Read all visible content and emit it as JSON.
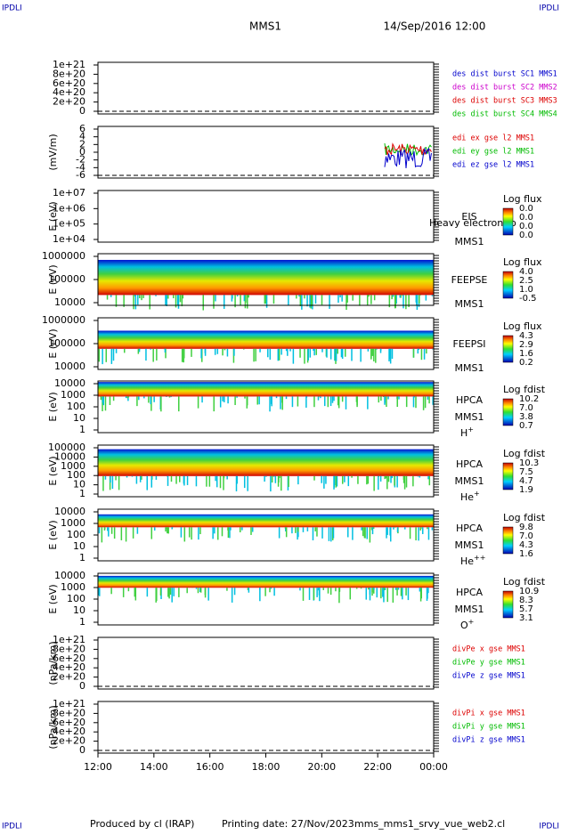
{
  "header": {
    "left_mark": "IPDLI",
    "right_mark": "IPDLI",
    "mission": "MMS1",
    "date": "14/Sep/2016 12:00"
  },
  "panels": [
    {
      "yticks": [
        "1e+21",
        "8e+20",
        "6e+20",
        "4e+20",
        "2e+20",
        "0"
      ],
      "legend": [
        {
          "text": "des dist burst SC1 MMS1",
          "color": "#0000cc"
        },
        {
          "text": "des dist burst SC2 MMS2",
          "color": "#cc00cc"
        },
        {
          "text": "des dist burst SC3 MMS3",
          "color": "#dd0000"
        },
        {
          "text": "des dist burst SC4 MMS4",
          "color": "#00bb00"
        }
      ]
    },
    {
      "ylabel": "(mV/m)",
      "yticks": [
        "6",
        "4",
        "2",
        "0",
        "-2",
        "-4",
        "-6"
      ],
      "legend": [
        {
          "text": "edi ex gse l2 MMS1",
          "color": "#dd0000"
        },
        {
          "text": "edi ey gse l2 MMS1",
          "color": "#00bb00"
        },
        {
          "text": "edi ez gse l2 MMS1",
          "color": "#0000cc"
        }
      ]
    },
    {
      "ylabel": "E (eV)",
      "yticks": [
        "1e+07",
        "1e+06",
        "1e+05",
        "1e+04"
      ],
      "instrument": [
        "EIS",
        "Heavy electron to",
        "MMS1"
      ],
      "colorbar": {
        "title": "Log flux",
        "ticks": [
          "0.0",
          "0.0",
          "0.0",
          "0.0"
        ]
      }
    },
    {
      "ylabel": "E (eV)",
      "yticks": [
        "1000000",
        "100000",
        "10000"
      ],
      "instrument": [
        "FEEPSE",
        "MMS1"
      ],
      "colorbar": {
        "title": "Log flux",
        "ticks": [
          "4.0",
          "2.5",
          "1.0",
          "-0.5"
        ]
      }
    },
    {
      "ylabel": "E (eV)",
      "yticks": [
        "1000000",
        "100000",
        "10000"
      ],
      "instrument": [
        "FEEPSI",
        "MMS1"
      ],
      "colorbar": {
        "title": "Log flux",
        "ticks": [
          "4.3",
          "2.9",
          "1.6",
          "0.2"
        ]
      }
    },
    {
      "ylabel": "E (eV)",
      "yticks": [
        "10000",
        "1000",
        "100",
        "10",
        "1"
      ],
      "instrument": [
        "HPCA",
        "MMS1"
      ],
      "species": {
        "base": "H",
        "charge": "+"
      },
      "colorbar": {
        "title": "Log fdist",
        "ticks": [
          "10.2",
          "7.0",
          "3.8",
          "0.7"
        ]
      }
    },
    {
      "ylabel": "E (eV)",
      "yticks": [
        "100000",
        "10000",
        "1000",
        "100",
        "10",
        "1"
      ],
      "instrument": [
        "HPCA",
        "MMS1"
      ],
      "species": {
        "base": "He",
        "charge": "+"
      },
      "colorbar": {
        "title": "Log fdist",
        "ticks": [
          "10.3",
          "7.5",
          "4.7",
          "1.9"
        ]
      }
    },
    {
      "ylabel": "E (eV)",
      "yticks": [
        "10000",
        "1000",
        "100",
        "10",
        "1"
      ],
      "instrument": [
        "HPCA",
        "MMS1"
      ],
      "species": {
        "base": "He",
        "charge": "++"
      },
      "colorbar": {
        "title": "Log fdist",
        "ticks": [
          "9.8",
          "7.0",
          "4.3",
          "1.6"
        ]
      }
    },
    {
      "ylabel": "E (eV)",
      "yticks": [
        "10000",
        "1000",
        "100",
        "10",
        "1"
      ],
      "instrument": [
        "HPCA",
        "MMS1"
      ],
      "species": {
        "base": "O",
        "charge": "+"
      },
      "colorbar": {
        "title": "Log fdist",
        "ticks": [
          "10.9",
          "8.3",
          "5.7",
          "3.1"
        ]
      }
    },
    {
      "ylabel": "(nPa/km)",
      "yticks": [
        "1e+21",
        "8e+20",
        "6e+20",
        "4e+20",
        "2e+20",
        "0"
      ],
      "legend": [
        {
          "text": "divPe x gse MMS1",
          "color": "#dd0000"
        },
        {
          "text": "divPe y gse MMS1",
          "color": "#00bb00"
        },
        {
          "text": "divPe z gse MMS1",
          "color": "#0000cc"
        }
      ]
    },
    {
      "ylabel": "(nPa/km)",
      "yticks": [
        "1e+21",
        "8e+20",
        "6e+20",
        "4e+20",
        "2e+20",
        "0"
      ],
      "legend": [
        {
          "text": "divPi x gse MMS1",
          "color": "#dd0000"
        },
        {
          "text": "divPi y gse MMS1",
          "color": "#00bb00"
        },
        {
          "text": "divPi z gse MMS1",
          "color": "#0000cc"
        }
      ]
    }
  ],
  "x_axis": {
    "ticks": [
      "12:00",
      "14:00",
      "16:00",
      "18:00",
      "20:00",
      "22:00",
      "00:00"
    ]
  },
  "footer": {
    "producer": "Produced by cl (IRAP)",
    "printing_date": "Printing date: 27/Nov/2023",
    "file": "mms_mms1_srvy_vue_web2.cl",
    "left_mark": "IPDLI",
    "right_mark": "IPDLI"
  }
}
